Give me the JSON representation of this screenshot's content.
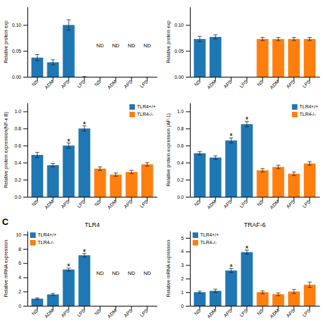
{
  "chart_data": [
    {
      "type": "bar",
      "ylabel": "Relative protein exp",
      "categories": [
        "NS",
        "ADM",
        "APS",
        "LPS",
        "NS",
        "ADM",
        "APS",
        "LPS"
      ],
      "series": [
        {
          "values": [
            0.037,
            0.028,
            0.1,
            0.0,
            null,
            null,
            null,
            null
          ],
          "errors": [
            0.006,
            0.005,
            0.01,
            0.0,
            null,
            null,
            null,
            null
          ]
        }
      ],
      "ylim": [
        0.0,
        0.135
      ],
      "yticks": [
        {
          "value": 0.0,
          "label": "0.00"
        },
        0.05,
        {
          "value": 0.1,
          "label": "0.10"
        }
      ],
      "annotations": [
        {
          "text": "ND",
          "x": 4,
          "y": 0.06
        },
        {
          "text": "ND",
          "x": 5,
          "y": 0.06
        },
        {
          "text": "ND",
          "x": 6,
          "y": 0.06
        },
        {
          "text": "ND",
          "x": 7,
          "y": 0.06
        }
      ]
    },
    {
      "type": "bar",
      "ylabel": "Relative protein exp",
      "categories": [
        "NS",
        "ADM",
        "APS",
        "LPS",
        "NS",
        "ADM",
        "APS",
        "LPS"
      ],
      "series": [
        {
          "values": [
            0.073,
            0.077,
            null,
            null,
            null,
            null,
            null,
            null
          ],
          "errors": [
            0.005,
            0.004,
            null,
            null,
            null,
            null,
            null,
            null
          ]
        },
        {
          "values": [
            null,
            null,
            null,
            null,
            0.073,
            0.073,
            0.073,
            0.073
          ],
          "errors": [
            null,
            null,
            null,
            null,
            0.003,
            0.003,
            0.003,
            0.003
          ]
        }
      ],
      "ylim": [
        0.0,
        0.135
      ],
      "yticks": [
        {
          "value": 0.0,
          "label": "0.00"
        },
        0.05,
        {
          "value": 0.1,
          "label": "0.10"
        }
      ]
    },
    {
      "type": "bar",
      "ylabel": "Relative protein expression(NF-κ B)",
      "categories": [
        "NS",
        "ADM",
        "APS",
        "LPS",
        "NS",
        "ADM",
        "APS",
        "LPS"
      ],
      "series": [
        {
          "name": "TLR4+/+",
          "values": [
            0.49,
            0.37,
            0.6,
            0.8,
            null,
            null,
            null,
            null
          ],
          "errors": [
            0.03,
            0.02,
            0.03,
            0.03,
            null,
            null,
            null,
            null
          ]
        },
        {
          "name": "TLR4-/-",
          "values": [
            null,
            null,
            null,
            null,
            0.33,
            0.26,
            0.29,
            0.38
          ],
          "errors": [
            null,
            null,
            null,
            null,
            0.02,
            0.02,
            0.02,
            0.02
          ]
        }
      ],
      "ylim": [
        0.0,
        1.1
      ],
      "yticks": [
        {
          "value": 0.0,
          "label": "0.0"
        },
        0.2,
        0.4,
        0.6,
        0.8,
        {
          "value": 1.0,
          "label": "1.0"
        }
      ],
      "legend": "upper right",
      "annotations": [
        {
          "text": "*",
          "x": 2
        },
        {
          "text": "*",
          "x": 3
        }
      ]
    },
    {
      "type": "bar",
      "ylabel": "Relative protein expression (AP-1)",
      "categories": [
        "NS",
        "ADM",
        "APS",
        "LPS",
        "NS",
        "ADM",
        "APS",
        "LPS"
      ],
      "series": [
        {
          "name": "TLR4+/+",
          "values": [
            0.51,
            0.46,
            0.66,
            0.85,
            null,
            null,
            null,
            null
          ],
          "errors": [
            0.02,
            0.02,
            0.03,
            0.03,
            null,
            null,
            null,
            null
          ]
        },
        {
          "name": "TLR4-/-",
          "values": [
            null,
            null,
            null,
            null,
            0.31,
            0.35,
            0.27,
            0.39
          ],
          "errors": [
            null,
            null,
            null,
            null,
            0.02,
            0.02,
            0.02,
            0.02
          ]
        }
      ],
      "ylim": [
        0.0,
        1.1
      ],
      "yticks": [
        {
          "value": 0.0,
          "label": "0.0"
        },
        0.2,
        0.4,
        0.6,
        0.8,
        {
          "value": 1.0,
          "label": "1.0"
        }
      ],
      "legend": "upper right",
      "annotations": [
        {
          "text": "*",
          "x": 2
        },
        {
          "text": "*",
          "x": 3
        }
      ]
    },
    {
      "type": "bar",
      "title": "TLR4",
      "ylabel": "Relative mRNA expression",
      "categories": [
        "NS",
        "ADM",
        "APS",
        "LPS",
        "NS",
        "ADM",
        "APS",
        "LPS"
      ],
      "series": [
        {
          "name": "TLR4+/+",
          "values": [
            1.0,
            1.6,
            5.1,
            7.1,
            null,
            null,
            null,
            null
          ],
          "errors": [
            0.1,
            0.15,
            0.2,
            0.25,
            null,
            null,
            null,
            null
          ]
        },
        {
          "name": "TLR4-/-",
          "values": [
            null,
            null,
            null,
            null,
            null,
            null,
            null,
            null
          ]
        }
      ],
      "ylim": [
        0,
        10.5
      ],
      "yticks": [
        0,
        2,
        4,
        6,
        8,
        10
      ],
      "legend": "upper left",
      "annotations": [
        {
          "text": "C"
        },
        {
          "text": "ND",
          "x": 4,
          "y": 4.5
        },
        {
          "text": "ND",
          "x": 5,
          "y": 4.5
        },
        {
          "text": "ND",
          "x": 6,
          "y": 4.5
        },
        {
          "text": "ND",
          "x": 7,
          "y": 4.5
        },
        {
          "text": "*",
          "x": 2
        },
        {
          "text": "*",
          "x": 3
        }
      ]
    },
    {
      "type": "bar",
      "title": "TRAF-6",
      "ylabel": "Relative mRNA expression",
      "categories": [
        "NS",
        "ADM",
        "APS",
        "LPS",
        "NS",
        "ADM",
        "APS",
        "LPS"
      ],
      "series": [
        {
          "name": "TLR4+/+",
          "values": [
            1.0,
            1.1,
            2.6,
            3.95,
            null,
            null,
            null,
            null
          ],
          "errors": [
            0.08,
            0.12,
            0.15,
            0.15,
            null,
            null,
            null,
            null
          ]
        },
        {
          "name": "TLR4-/-",
          "values": [
            null,
            null,
            null,
            null,
            1.0,
            0.85,
            1.05,
            1.55
          ],
          "errors": [
            null,
            null,
            null,
            null,
            0.1,
            0.1,
            0.15,
            0.2
          ]
        }
      ],
      "ylim": [
        0,
        5.5
      ],
      "yticks": [
        0,
        1,
        2,
        3,
        4,
        5
      ],
      "legend": "upper left",
      "annotations": [
        {
          "text": "*",
          "x": 2
        },
        {
          "text": "*",
          "x": 3
        }
      ]
    }
  ]
}
